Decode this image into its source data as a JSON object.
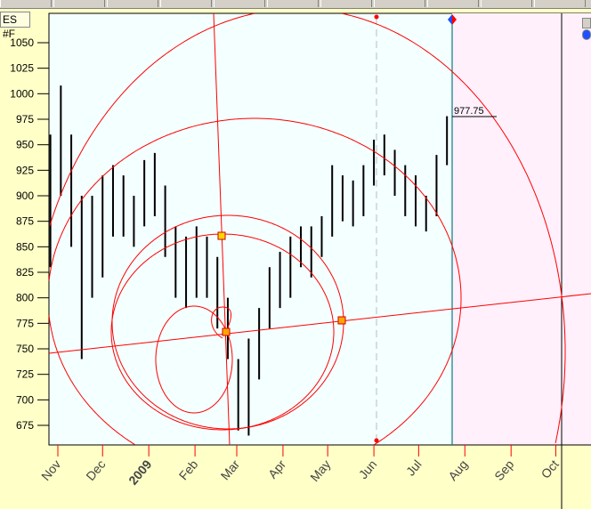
{
  "symbol": "ES #F",
  "colors": {
    "background": "#ffffc8",
    "plot_bg": "#f4ffff",
    "future_bg": "#fff0fc",
    "drawing": "#ff0000",
    "bars": "#000000",
    "cursor": "#008080",
    "year_label": "#8b0000"
  },
  "toolbar": {
    "icons": [
      "refresh-icon",
      "draw-line-icon",
      "color-icon",
      "zoom-icon",
      "bar-style-icon",
      "pencil-icon",
      "color-green-icon",
      "box-icon",
      "ruler-icon",
      "stop-icon",
      "magnifier-icon"
    ]
  },
  "chart_data": {
    "type": "bar",
    "title": "",
    "ylim": [
      662,
      1062
    ],
    "y_ticks": [
      "1050",
      "1025",
      "1000",
      "975",
      "950",
      "925",
      "900",
      "875",
      "850",
      "825",
      "800",
      "775",
      "750",
      "725",
      "700",
      "675"
    ],
    "x_ticks": [
      {
        "label": "Nov",
        "date": "2008-11-01"
      },
      {
        "label": "Dec",
        "date": "2008-12-01"
      },
      {
        "label": "2009",
        "date": "2009-01-01",
        "highlight": true
      },
      {
        "label": "Feb",
        "date": "2009-02-01"
      },
      {
        "label": "Mar",
        "date": "2009-03-01"
      },
      {
        "label": "Apr",
        "date": "2009-04-01"
      },
      {
        "label": "May",
        "date": "2009-05-01"
      },
      {
        "label": "Jun",
        "date": "2009-06-01"
      },
      {
        "label": "Jul",
        "date": "2009-07-01"
      },
      {
        "label": "Aug",
        "date": "2009-08-01"
      },
      {
        "label": "Sep",
        "date": "2009-09-01"
      },
      {
        "label": "Oct",
        "date": "2009-10-01"
      }
    ],
    "last_price": "977.75",
    "bars": [
      {
        "date": "2008-10-27",
        "high": 960,
        "low": 830
      },
      {
        "date": "2008-11-03",
        "high": 1008,
        "low": 900
      },
      {
        "date": "2008-11-10",
        "high": 960,
        "low": 850
      },
      {
        "date": "2008-11-17",
        "high": 900,
        "low": 740
      },
      {
        "date": "2008-11-24",
        "high": 900,
        "low": 800
      },
      {
        "date": "2008-12-01",
        "high": 920,
        "low": 820
      },
      {
        "date": "2008-12-08",
        "high": 930,
        "low": 860
      },
      {
        "date": "2008-12-15",
        "high": 920,
        "low": 860
      },
      {
        "date": "2008-12-22",
        "high": 900,
        "low": 850
      },
      {
        "date": "2008-12-29",
        "high": 935,
        "low": 870
      },
      {
        "date": "2009-01-05",
        "high": 942,
        "low": 880
      },
      {
        "date": "2009-01-12",
        "high": 910,
        "low": 840
      },
      {
        "date": "2009-01-19",
        "high": 870,
        "low": 800
      },
      {
        "date": "2009-01-26",
        "high": 860,
        "low": 790
      },
      {
        "date": "2009-02-02",
        "high": 870,
        "low": 800
      },
      {
        "date": "2009-02-09",
        "high": 860,
        "low": 800
      },
      {
        "date": "2009-02-16",
        "high": 840,
        "low": 770
      },
      {
        "date": "2009-02-23",
        "high": 800,
        "low": 740
      },
      {
        "date": "2009-03-02",
        "high": 740,
        "low": 670
      },
      {
        "date": "2009-03-09",
        "high": 760,
        "low": 665
      },
      {
        "date": "2009-03-16",
        "high": 790,
        "low": 720
      },
      {
        "date": "2009-03-23",
        "high": 830,
        "low": 770
      },
      {
        "date": "2009-03-30",
        "high": 845,
        "low": 790
      },
      {
        "date": "2009-04-06",
        "high": 860,
        "low": 800
      },
      {
        "date": "2009-04-13",
        "high": 870,
        "low": 830
      },
      {
        "date": "2009-04-20",
        "high": 870,
        "low": 820
      },
      {
        "date": "2009-04-27",
        "high": 880,
        "low": 840
      },
      {
        "date": "2009-05-04",
        "high": 930,
        "low": 860
      },
      {
        "date": "2009-05-11",
        "high": 920,
        "low": 875
      },
      {
        "date": "2009-05-18",
        "high": 915,
        "low": 870
      },
      {
        "date": "2009-05-25",
        "high": 930,
        "low": 880
      },
      {
        "date": "2009-06-01",
        "high": 955,
        "low": 910
      },
      {
        "date": "2009-06-08",
        "high": 960,
        "low": 920
      },
      {
        "date": "2009-06-15",
        "high": 945,
        "low": 900
      },
      {
        "date": "2009-06-22",
        "high": 930,
        "low": 880
      },
      {
        "date": "2009-06-29",
        "high": 920,
        "low": 870
      },
      {
        "date": "2009-07-06",
        "high": 900,
        "low": 865
      },
      {
        "date": "2009-07-13",
        "high": 940,
        "low": 880
      },
      {
        "date": "2009-07-20",
        "high": 978,
        "low": 930
      }
    ]
  }
}
